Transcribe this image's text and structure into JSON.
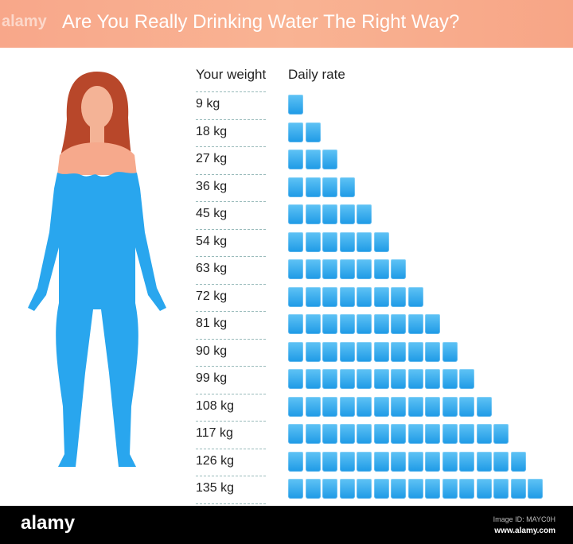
{
  "header": {
    "title": "Are You Really Drinking Water The Right Way?",
    "bg_color": "#f8a98a"
  },
  "watermark": {
    "logo": "alamy",
    "image_id": "Image ID: MAYC0H",
    "url": "www.alamy.com"
  },
  "chart_data": {
    "type": "pictograph",
    "columns": [
      "Your weight",
      "Daily rate"
    ],
    "categories": [
      "9 kg",
      "18 kg",
      "27 kg",
      "36 kg",
      "45 kg",
      "54 kg",
      "63 kg",
      "72 kg",
      "81 kg",
      "90 kg",
      "99 kg",
      "108 kg",
      "117 kg",
      "126 kg",
      "135 kg"
    ],
    "values": [
      1,
      2,
      3,
      4,
      5,
      6,
      7,
      8,
      9,
      10,
      11,
      12,
      13,
      14,
      15
    ],
    "unit_icon": "water-glass-icon",
    "glass_color": "#2aa3ea"
  },
  "figure": {
    "icon": "woman-silhouette",
    "body_color": "#29a6ee",
    "skin_color": "#f6a98c",
    "hair_color": "#b8472a"
  }
}
